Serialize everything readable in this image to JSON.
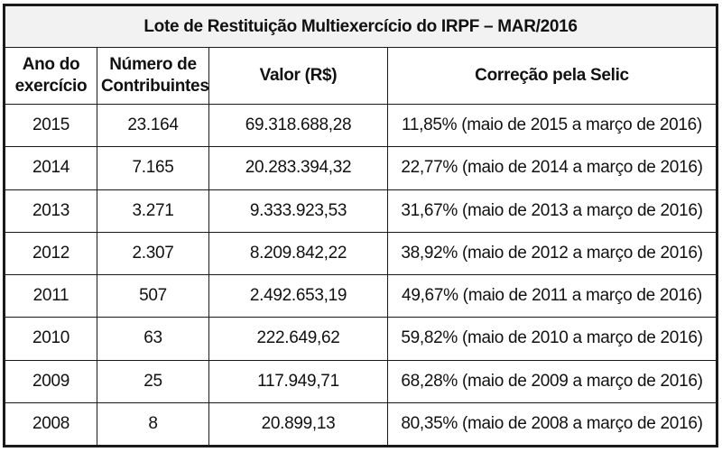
{
  "title": "Lote de Restituição Multiexercício do IRPF – MAR/2016",
  "columns": {
    "ano_line1": "Ano do",
    "ano_line2": "exercício",
    "numero_line1": "Número de",
    "numero_line2": "Contribuintes",
    "valor": "Valor (R$)",
    "correcao": "Correção pela Selic"
  },
  "rows": [
    {
      "ano": "2015",
      "contribuintes": "23.164",
      "valor": "69.318.688,28",
      "correcao": "11,85% (maio de 2015 a março de 2016)"
    },
    {
      "ano": "2014",
      "contribuintes": "7.165",
      "valor": "20.283.394,32",
      "correcao": "22,77% (maio de 2014 a março de 2016)"
    },
    {
      "ano": "2013",
      "contribuintes": "3.271",
      "valor": "9.333.923,53",
      "correcao": "31,67% (maio de 2013 a março de 2016)"
    },
    {
      "ano": "2012",
      "contribuintes": "2.307",
      "valor": "8.209.842,22",
      "correcao": "38,92% (maio de 2012 a março de 2016)"
    },
    {
      "ano": "2011",
      "contribuintes": "507",
      "valor": "2.492.653,19",
      "correcao": "49,67% (maio de 2011 a março de 2016)"
    },
    {
      "ano": "2010",
      "contribuintes": "63",
      "valor": "222.649,62",
      "correcao": "59,82% (maio de 2010 a março de 2016)"
    },
    {
      "ano": "2009",
      "contribuintes": "25",
      "valor": "117.949,71",
      "correcao": "68,28% (maio de 2009 a março de 2016)"
    },
    {
      "ano": "2008",
      "contribuintes": "8",
      "valor": "20.899,13",
      "correcao": "80,35% (maio de 2008 a março de 2016)"
    }
  ]
}
